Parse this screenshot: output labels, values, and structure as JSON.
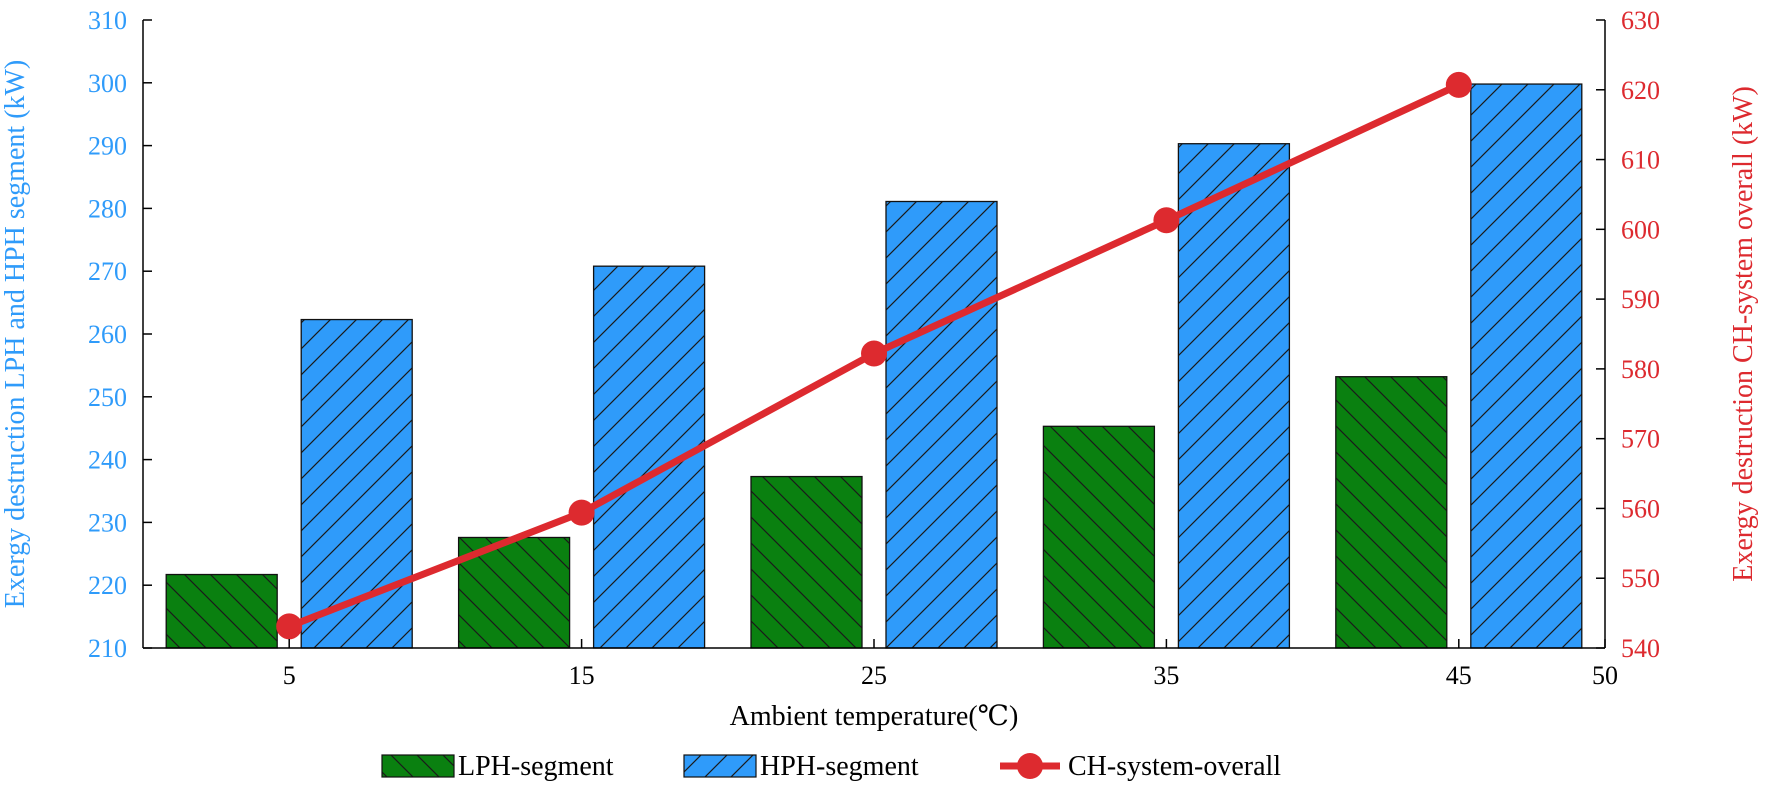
{
  "chart_data": {
    "type": "bar",
    "xlabel": "Ambient temperature(℃)",
    "ylabel_left": "Exergy destruction LPH and HPH segment (kW)",
    "ylabel_right": "Exergy destruction CH-system overall (kW)",
    "categories": [
      "5",
      "15",
      "25",
      "35",
      "45"
    ],
    "x_ticks": [
      "5",
      "15",
      "25",
      "35",
      "45",
      "50"
    ],
    "y_left_ticks": [
      "210",
      "220",
      "230",
      "240",
      "250",
      "260",
      "270",
      "280",
      "290",
      "300",
      "310"
    ],
    "y_right_ticks": [
      "540",
      "550",
      "560",
      "570",
      "580",
      "590",
      "600",
      "610",
      "620",
      "630"
    ],
    "ylim_left": [
      210,
      310
    ],
    "ylim_right": [
      540,
      630
    ],
    "series": [
      {
        "name": "LPH-segment",
        "kind": "bar",
        "axis": "left",
        "color": "#0a8010",
        "hatch": "backslash",
        "values": [
          221.7,
          227.6,
          237.3,
          245.3,
          253.2
        ]
      },
      {
        "name": "HPH-segment",
        "kind": "bar",
        "axis": "left",
        "color": "#2f9bfa",
        "hatch": "slash",
        "values": [
          262.3,
          270.8,
          281.1,
          290.3,
          299.8
        ]
      },
      {
        "name": "CH-system-overall",
        "kind": "line",
        "axis": "right",
        "color": "#dd2a2f",
        "values": [
          543.1,
          559.4,
          582.2,
          601.3,
          620.7
        ]
      }
    ],
    "axis_colors": {
      "left": "#2f9bfa",
      "right": "#dd2a2f",
      "x": "#000000"
    },
    "legend": {
      "placement": "bottom-center",
      "items": [
        "LPH-segment",
        "HPH-segment",
        "CH-system-overall"
      ]
    }
  }
}
